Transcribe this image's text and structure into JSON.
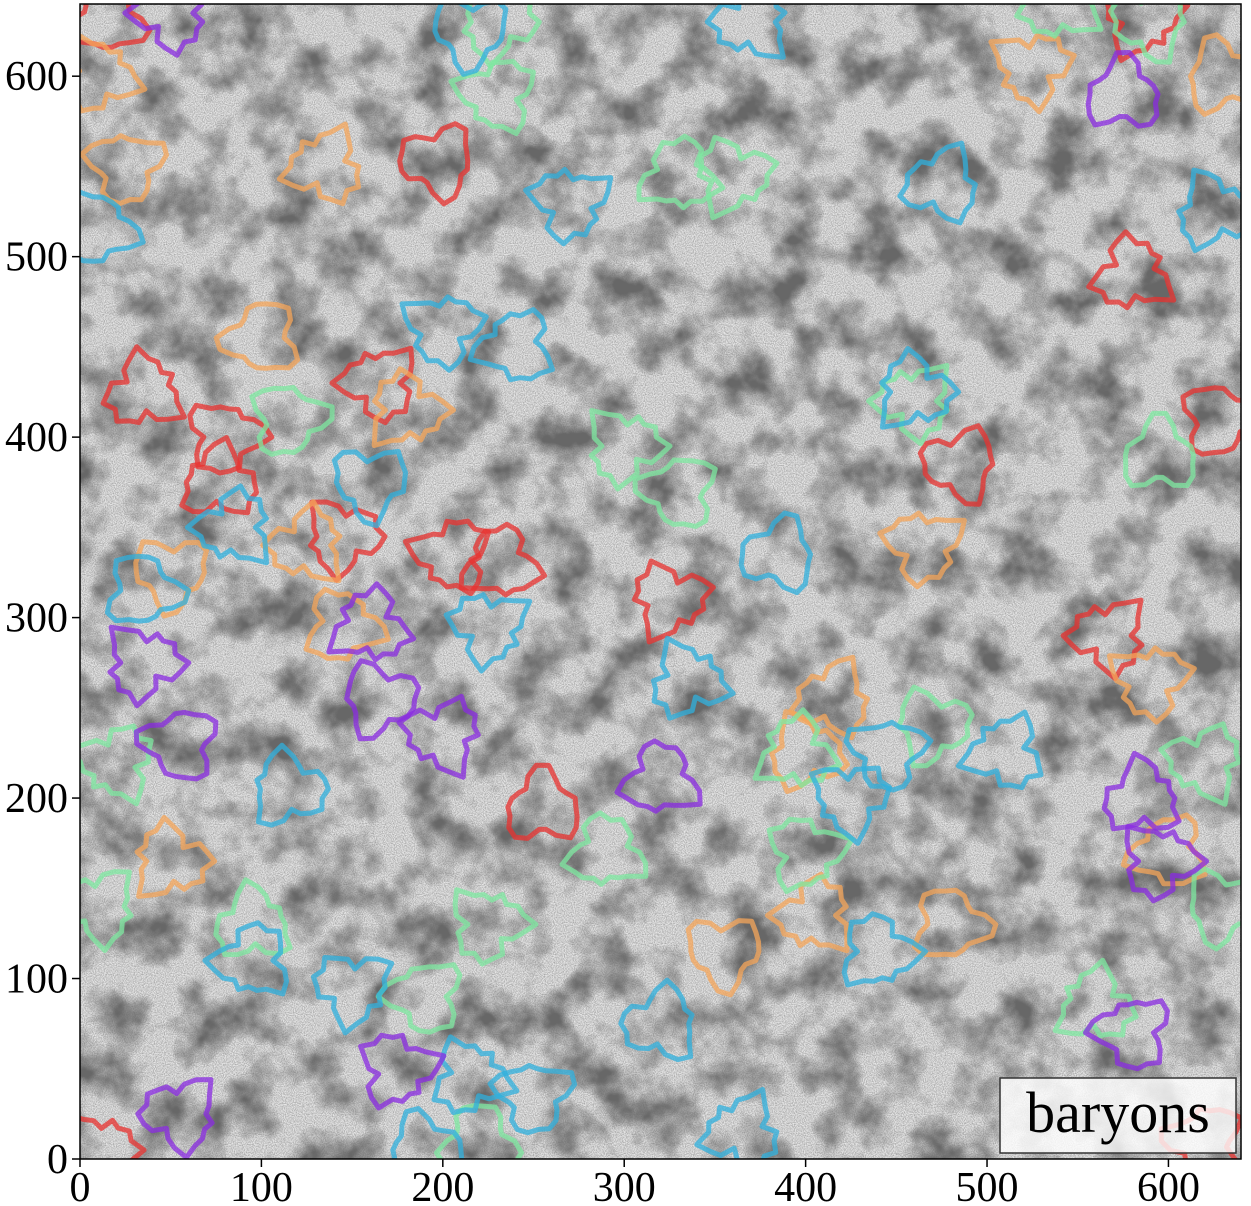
{
  "chart_data": {
    "type": "contour-map",
    "annotation": "baryons",
    "xlim": [
      0,
      640
    ],
    "ylim": [
      0,
      640
    ],
    "xticks": [
      0,
      100,
      200,
      300,
      400,
      500,
      600
    ],
    "yticks": [
      0,
      100,
      200,
      300,
      400,
      500,
      600
    ],
    "series": [
      {
        "color": "#e8312f",
        "x": [
          15,
          585,
          197,
          35,
          80,
          165,
          77,
          145,
          205,
          232,
          325,
          485,
          580,
          628,
          567,
          255,
          10,
          620
        ],
        "y": [
          632,
          632,
          553,
          425,
          400,
          430,
          375,
          345,
          335,
          330,
          310,
          385,
          490,
          410,
          290,
          195,
          5,
          10
        ]
      },
      {
        "color": "#f5a55a",
        "x": [
          10,
          25,
          135,
          630,
          525,
          100,
          180,
          50,
          125,
          145,
          465,
          415,
          400,
          590,
          600,
          50,
          355,
          405,
          480
        ],
        "y": [
          600,
          550,
          550,
          600,
          605,
          455,
          415,
          325,
          340,
          295,
          340,
          255,
          225,
          265,
          170,
          165,
          115,
          135,
          130
        ]
      },
      {
        "color": "#7ee8a0",
        "x": [
          230,
          230,
          330,
          360,
          590,
          540,
          115,
          460,
          595,
          300,
          330,
          395,
          470,
          620,
          290,
          400,
          10,
          95,
          225,
          190,
          560,
          630,
          20,
          220
        ],
        "y": [
          630,
          590,
          545,
          545,
          630,
          640,
          410,
          420,
          390,
          395,
          370,
          225,
          240,
          220,
          170,
          170,
          140,
          130,
          130,
          90,
          85,
          140,
          220,
          10
        ]
      },
      {
        "color": "#2fb0dd",
        "x": [
          215,
          370,
          10,
          270,
          475,
          625,
          200,
          240,
          460,
          160,
          85,
          35,
          225,
          385,
          335,
          445,
          510,
          115,
          425,
          95,
          440,
          150,
          320,
          215,
          250,
          365,
          190
        ],
        "y": [
          625,
          630,
          515,
          530,
          540,
          525,
          460,
          450,
          425,
          375,
          350,
          315,
          295,
          335,
          265,
          225,
          225,
          205,
          200,
          110,
          115,
          95,
          75,
          45,
          35,
          15,
          5
        ]
      },
      {
        "color": "#8a2be2",
        "x": [
          50,
          575,
          35,
          55,
          160,
          165,
          200,
          320,
          175,
          55,
          585,
          595,
          580
        ],
        "y": [
          635,
          590,
          275,
          230,
          295,
          255,
          235,
          210,
          50,
          25,
          200,
          165,
          70
        ]
      }
    ]
  }
}
